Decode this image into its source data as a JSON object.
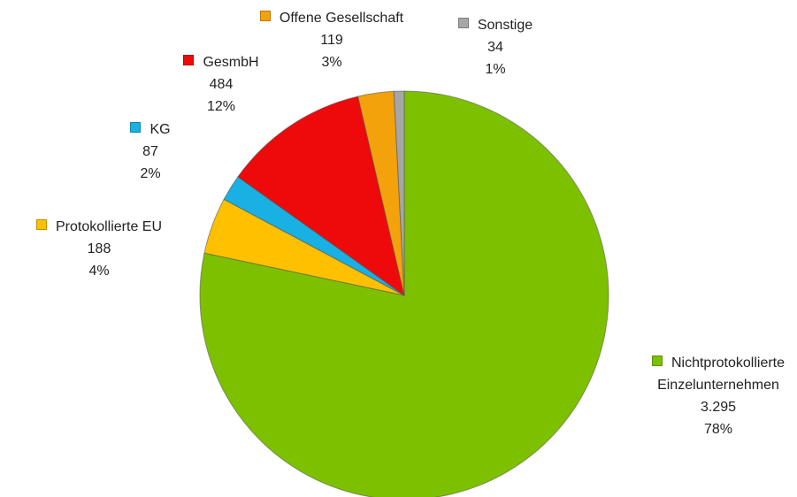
{
  "chart_data": {
    "type": "pie",
    "categories": [
      "Nichtprotokollierte Einzelunternehmen",
      "Protokollierte EU",
      "KG",
      "GesmbH",
      "Offene Gesellschaft",
      "Sonstige"
    ],
    "values": [
      3295,
      188,
      87,
      484,
      119,
      34
    ],
    "value_labels": [
      "3.295",
      "188",
      "87",
      "484",
      "119",
      "34"
    ],
    "percent_labels": [
      "78%",
      "4%",
      "2%",
      "12%",
      "3%",
      "1%"
    ],
    "colors": [
      "#7dc000",
      "#ffc000",
      "#19b0e3",
      "#ee0a0a",
      "#f3a20c",
      "#a6a6a6"
    ]
  }
}
